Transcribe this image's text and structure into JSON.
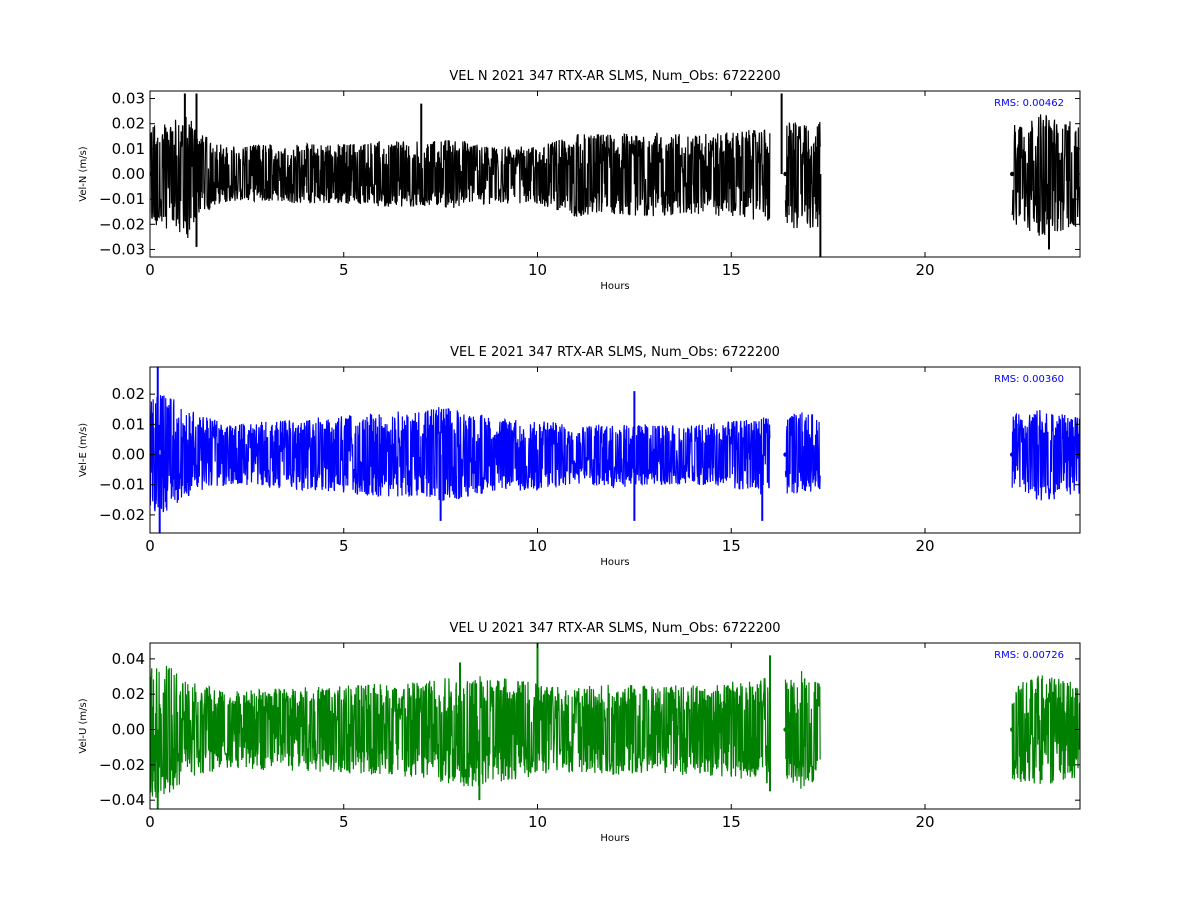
{
  "chart_data": [
    {
      "type": "line",
      "title": "VEL N 2021 347 RTX-AR  SLMS, Num_Obs: 6722200",
      "xlabel": "Hours",
      "ylabel": "Vel-N (m/s)",
      "xlim": [
        0,
        24
      ],
      "ylim": [
        -0.033,
        0.033
      ],
      "x_ticks": [
        "0",
        "5",
        "10",
        "15",
        "20"
      ],
      "y_ticks": [
        "−0.03",
        "−0.02",
        "−0.01",
        "0.00",
        "0.01",
        "0.02",
        "0.03"
      ],
      "rms_label": "RMS:  0.00462",
      "color": "#000000",
      "grid": false,
      "segments": [
        {
          "x": [
            0.0,
            0.5,
            1.0,
            1.3,
            2.0,
            3.0,
            4.0,
            5.0,
            6.0,
            7.0,
            8.0,
            8.3,
            9.0,
            10.0,
            11.0,
            12.0,
            13.0,
            14.0,
            15.0,
            16.0
          ],
          "upper": [
            0.02,
            0.021,
            0.024,
            0.016,
            0.011,
            0.012,
            0.012,
            0.012,
            0.013,
            0.013,
            0.014,
            0.012,
            0.011,
            0.011,
            0.016,
            0.016,
            0.017,
            0.016,
            0.017,
            0.018
          ],
          "lower": [
            -0.02,
            -0.022,
            -0.026,
            -0.016,
            -0.011,
            -0.011,
            -0.012,
            -0.012,
            -0.013,
            -0.013,
            -0.014,
            -0.012,
            -0.012,
            -0.012,
            -0.017,
            -0.016,
            -0.017,
            -0.016,
            -0.017,
            -0.019
          ]
        },
        {
          "x": [
            16.4,
            16.8,
            17.3
          ],
          "upper": [
            0.022,
            0.02,
            0.021
          ],
          "lower": [
            -0.021,
            -0.022,
            -0.022
          ]
        },
        {
          "x": [
            22.25,
            23.0,
            24.0
          ],
          "upper": [
            0.02,
            0.024,
            0.02
          ],
          "lower": [
            -0.02,
            -0.025,
            -0.021
          ]
        }
      ],
      "spikes": [
        {
          "x": 0.9,
          "y": 0.032
        },
        {
          "x": 1.2,
          "y": 0.032
        },
        {
          "x": 1.2,
          "y": -0.029
        },
        {
          "x": 7.0,
          "y": 0.028
        },
        {
          "x": 16.3,
          "y": 0.032
        },
        {
          "x": 17.3,
          "y": -0.033
        },
        {
          "x": 23.2,
          "y": -0.03
        }
      ]
    },
    {
      "type": "line",
      "title": "VEL E 2021 347 RTX-AR  SLMS, Num_Obs: 6722200",
      "xlabel": "Hours",
      "ylabel": "Vel-E (m/s)",
      "xlim": [
        0,
        24
      ],
      "ylim": [
        -0.026,
        0.029
      ],
      "x_ticks": [
        "0",
        "5",
        "10",
        "15",
        "20"
      ],
      "y_ticks": [
        "−0.02",
        "−0.01",
        "0.00",
        "0.01",
        "0.02"
      ],
      "rms_label": "RMS:  0.00360",
      "color": "#0000ff",
      "grid": false,
      "segments": [
        {
          "x": [
            0.0,
            0.3,
            1.0,
            2.0,
            3.0,
            4.0,
            5.0,
            6.0,
            7.0,
            7.5,
            8.3,
            9.0,
            10.0,
            11.0,
            12.0,
            13.0,
            14.0,
            15.0,
            16.0
          ],
          "upper": [
            0.019,
            0.021,
            0.015,
            0.01,
            0.011,
            0.012,
            0.013,
            0.014,
            0.015,
            0.016,
            0.014,
            0.012,
            0.012,
            0.009,
            0.011,
            0.01,
            0.01,
            0.011,
            0.013
          ],
          "lower": [
            -0.019,
            -0.02,
            -0.014,
            -0.01,
            -0.011,
            -0.012,
            -0.013,
            -0.014,
            -0.014,
            -0.016,
            -0.014,
            -0.012,
            -0.012,
            -0.01,
            -0.011,
            -0.01,
            -0.01,
            -0.011,
            -0.014
          ]
        },
        {
          "x": [
            16.4,
            16.8,
            17.3
          ],
          "upper": [
            0.013,
            0.014,
            0.013
          ],
          "lower": [
            -0.013,
            -0.013,
            -0.012
          ]
        },
        {
          "x": [
            22.25,
            23.0,
            24.0
          ],
          "upper": [
            0.013,
            0.015,
            0.012
          ],
          "lower": [
            -0.013,
            -0.016,
            -0.013
          ]
        }
      ],
      "spikes": [
        {
          "x": 0.2,
          "y": 0.029
        },
        {
          "x": 0.25,
          "y": -0.026
        },
        {
          "x": 7.5,
          "y": -0.022
        },
        {
          "x": 12.5,
          "y": 0.021
        },
        {
          "x": 12.5,
          "y": -0.022
        },
        {
          "x": 15.8,
          "y": -0.022
        }
      ]
    },
    {
      "type": "line",
      "title": "VEL U 2021 347 RTX-AR  SLMS, Num_Obs: 6722200",
      "xlabel": "Hours",
      "ylabel": "Vel-U (m/s)",
      "xlim": [
        0,
        24
      ],
      "ylim": [
        -0.045,
        0.049
      ],
      "x_ticks": [
        "0",
        "5",
        "10",
        "15",
        "20"
      ],
      "y_ticks": [
        "−0.04",
        "−0.02",
        "0.00",
        "0.02",
        "0.04"
      ],
      "rms_label": "RMS:  0.00726",
      "color": "#008000",
      "grid": false,
      "segments": [
        {
          "x": [
            0.0,
            0.3,
            1.0,
            2.0,
            3.0,
            4.0,
            5.0,
            6.0,
            7.0,
            7.5,
            8.3,
            9.0,
            10.0,
            11.0,
            12.0,
            13.0,
            14.0,
            15.0,
            16.0
          ],
          "upper": [
            0.038,
            0.04,
            0.027,
            0.022,
            0.023,
            0.024,
            0.025,
            0.026,
            0.027,
            0.03,
            0.033,
            0.03,
            0.026,
            0.024,
            0.026,
            0.025,
            0.026,
            0.027,
            0.03
          ],
          "lower": [
            -0.038,
            -0.04,
            -0.027,
            -0.022,
            -0.023,
            -0.024,
            -0.025,
            -0.026,
            -0.027,
            -0.03,
            -0.033,
            -0.03,
            -0.026,
            -0.024,
            -0.026,
            -0.025,
            -0.026,
            -0.027,
            -0.031
          ]
        },
        {
          "x": [
            16.4,
            16.8,
            17.3
          ],
          "upper": [
            0.03,
            0.036,
            0.026
          ],
          "lower": [
            -0.03,
            -0.034,
            -0.027
          ]
        },
        {
          "x": [
            22.25,
            23.0,
            24.0
          ],
          "upper": [
            0.028,
            0.031,
            0.026
          ],
          "lower": [
            -0.029,
            -0.032,
            -0.027
          ]
        }
      ],
      "spikes": [
        {
          "x": 0.2,
          "y": -0.045
        },
        {
          "x": 8.0,
          "y": 0.038
        },
        {
          "x": 8.5,
          "y": -0.04
        },
        {
          "x": 10.0,
          "y": 0.049
        },
        {
          "x": 16.0,
          "y": 0.042
        },
        {
          "x": 16.0,
          "y": -0.035
        }
      ]
    }
  ]
}
